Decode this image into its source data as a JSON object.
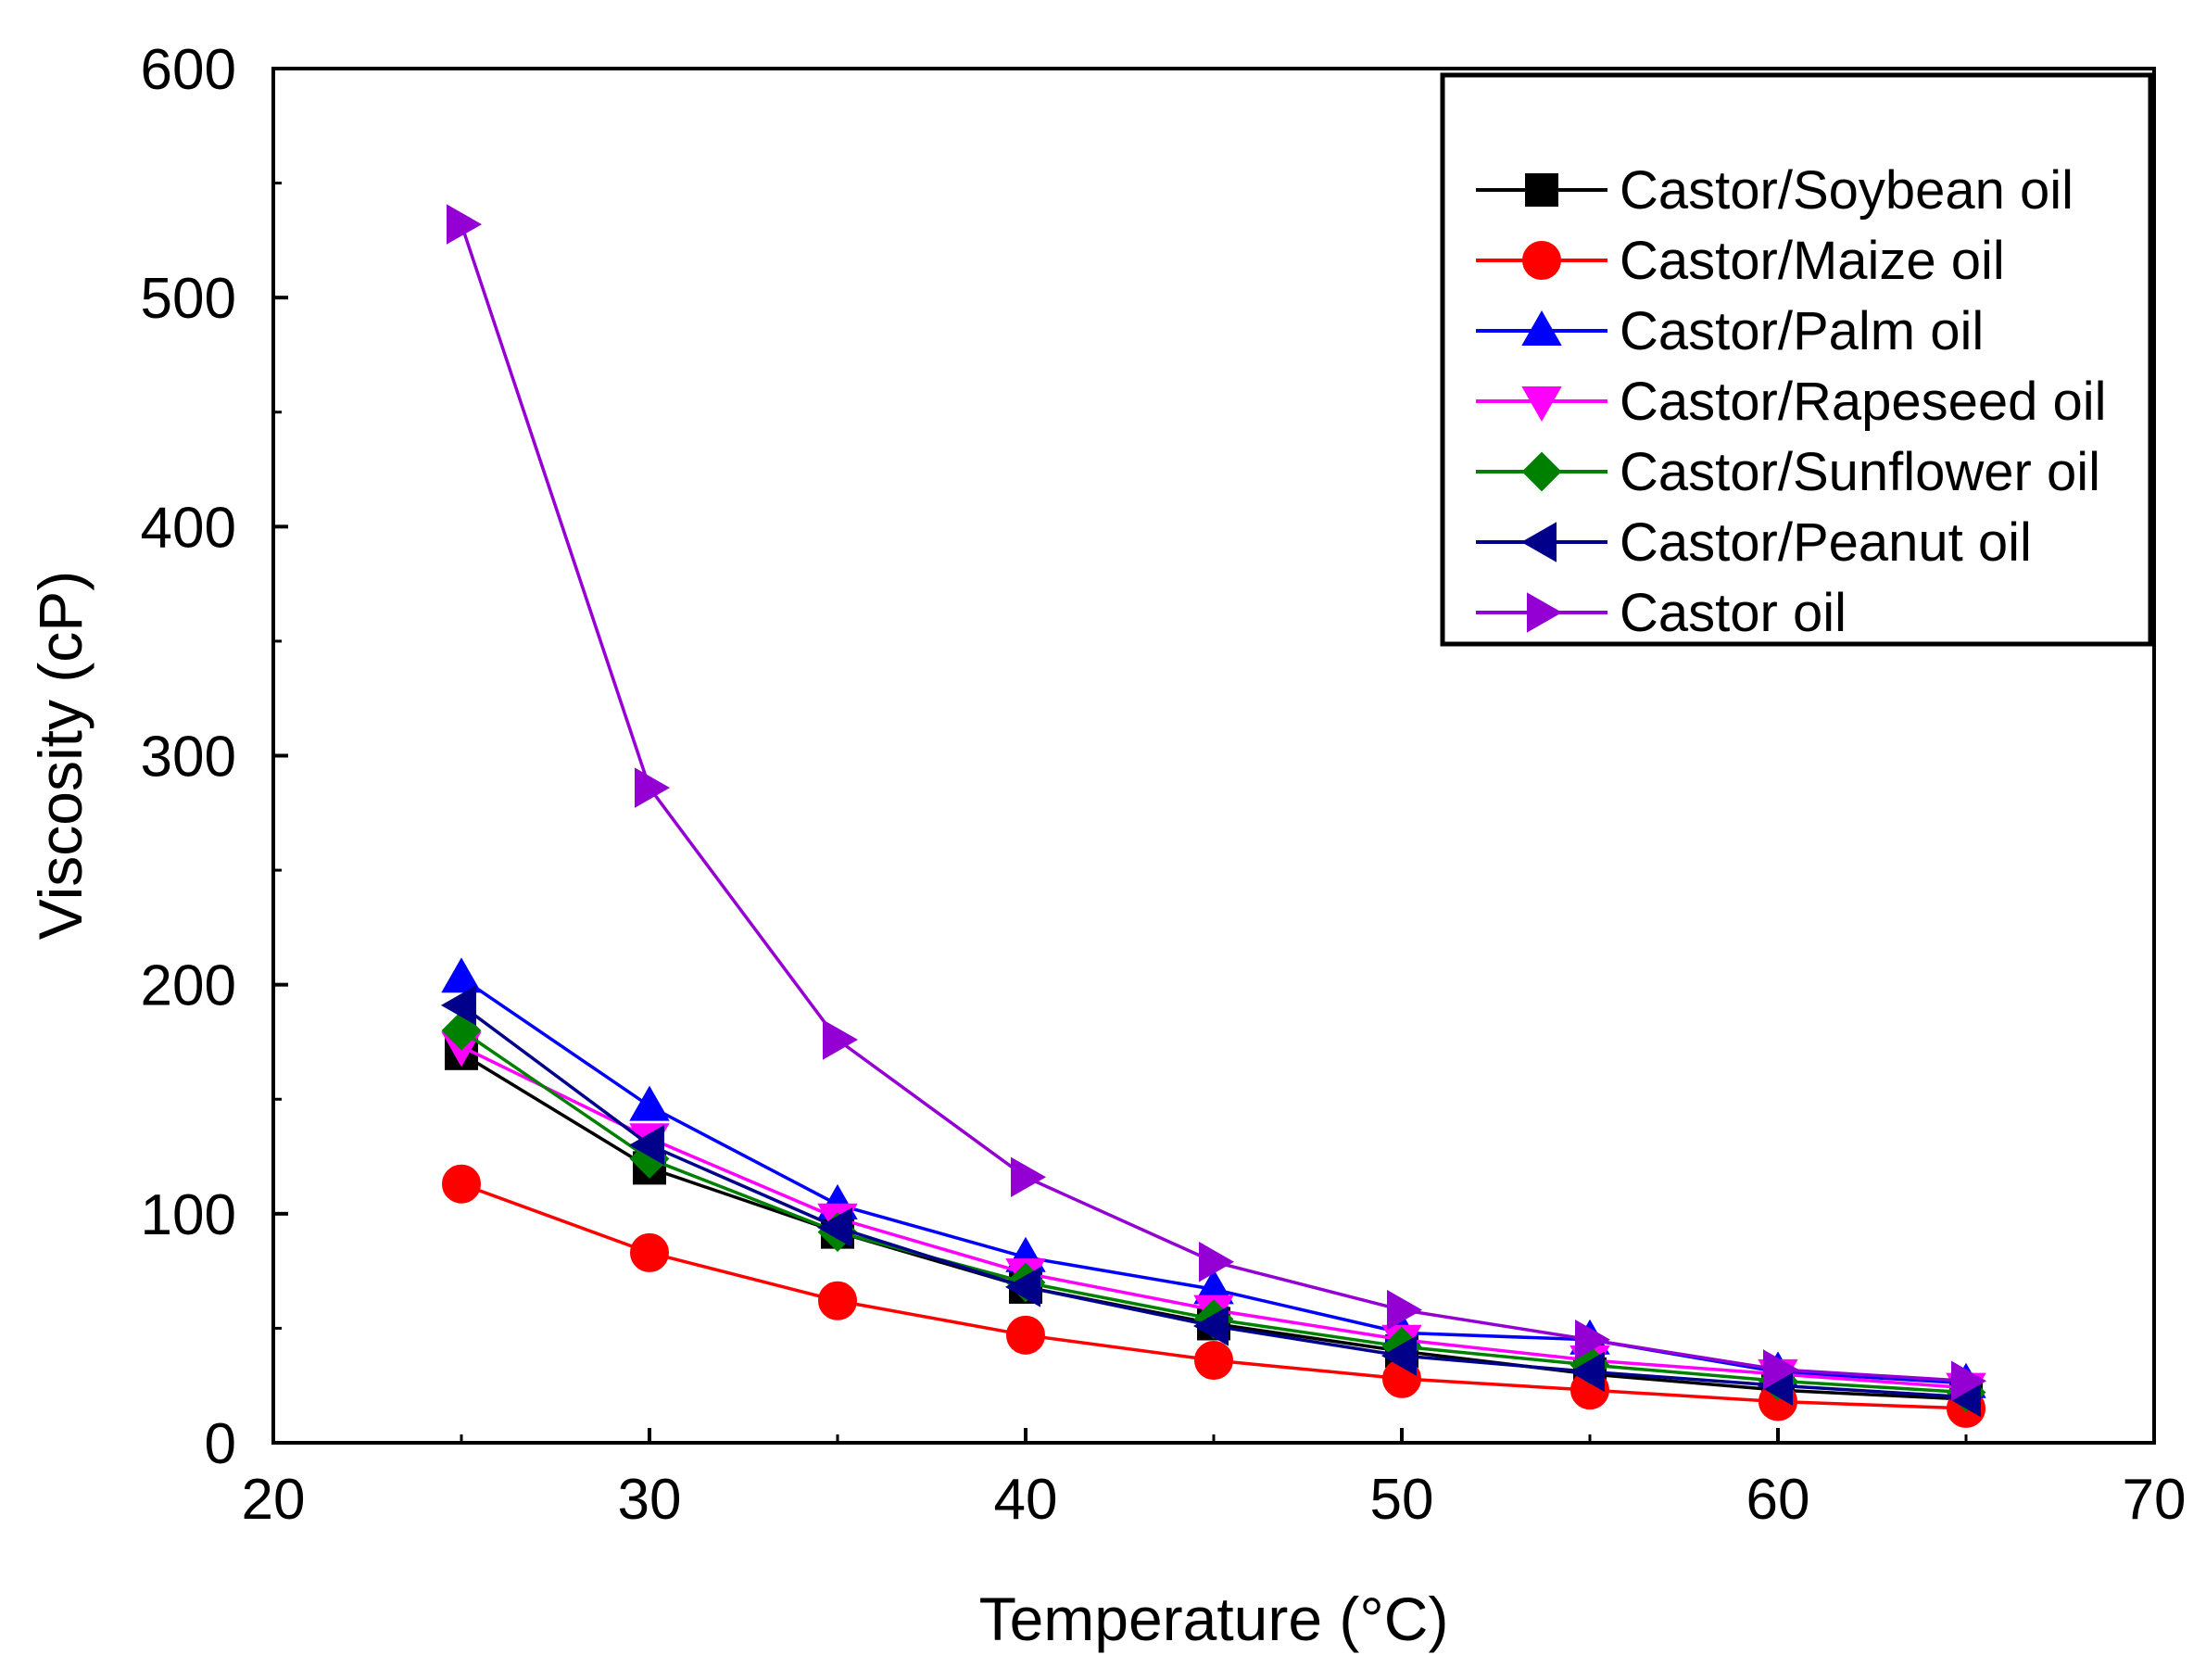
{
  "chart_data": {
    "type": "line",
    "title": "",
    "xlabel": "Temperature (°C)",
    "ylabel": "Viscosity (cP)",
    "xlim": [
      20,
      70
    ],
    "ylim": [
      0,
      600
    ],
    "xticks": [
      20,
      30,
      40,
      50,
      60,
      70
    ],
    "yticks": [
      0,
      100,
      200,
      300,
      400,
      500,
      600
    ],
    "grid": false,
    "legend_position": "top-right",
    "x": [
      25,
      30,
      35,
      40,
      45,
      50,
      55,
      60,
      65
    ],
    "series": [
      {
        "name": "Castor/Soybean oil",
        "color": "#000000",
        "marker": "square",
        "values": [
          170,
          120,
          92,
          68,
          52,
          40,
          30,
          23,
          19
        ]
      },
      {
        "name": "Castor/Maize oil",
        "color": "#ff0000",
        "marker": "circle",
        "values": [
          113,
          83,
          62,
          47,
          36,
          28,
          23,
          18,
          15
        ]
      },
      {
        "name": "Castor/Palm oil",
        "color": "#0000ff",
        "marker": "triangle-up",
        "values": [
          203,
          147,
          104,
          81,
          67,
          48,
          45,
          31,
          26
        ]
      },
      {
        "name": "Castor/Rapeseed oil",
        "color": "#ff00ff",
        "marker": "triangle-down",
        "values": [
          173,
          133,
          98,
          74,
          58,
          45,
          36,
          30,
          24
        ]
      },
      {
        "name": "Castor/Sunflower oil",
        "color": "#008000",
        "marker": "diamond",
        "values": [
          180,
          124,
          92,
          70,
          54,
          42,
          34,
          27,
          22
        ]
      },
      {
        "name": "Castor/Peanut oil",
        "color": "#00008b",
        "marker": "triangle-left",
        "values": [
          191,
          130,
          94,
          68,
          51,
          38,
          31,
          25,
          20
        ]
      },
      {
        "name": "Castor oil",
        "color": "#9400d3",
        "marker": "triangle-right",
        "values": [
          532,
          286,
          176,
          116,
          79,
          58,
          45,
          32,
          27
        ]
      }
    ]
  }
}
